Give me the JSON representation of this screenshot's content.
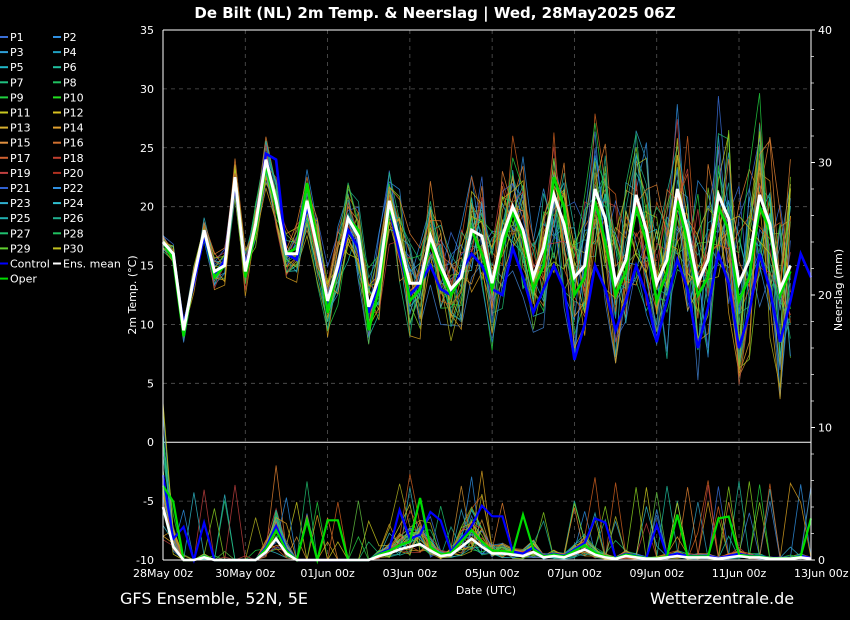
{
  "title": "De Bilt  (NL)  2m Temp. & Neerslag | Wed, 28May2025 06Z",
  "footer_left": "GFS Ensemble, 52N, 5E",
  "footer_right": "Wetterzentrale.de",
  "colors": {
    "background": "#000000",
    "grid": "#555555",
    "axis": "#ffffff",
    "control": "#0000ff",
    "mean": "#ffffff",
    "oper": "#00dd00"
  },
  "chart_data": {
    "type": "line",
    "title": "De Bilt  (NL)  2m Temp. & Neerslag | Wed, 28May2025 06Z",
    "xlabel": "Date (UTC)",
    "ylabel": "2m Temp. (°C)",
    "y2label": "Neerslag (mm)",
    "x_ticks": [
      "28May 00z",
      "30May 00z",
      "01Jun 00z",
      "03Jun 00z",
      "05Jun 00z",
      "07Jun 00z",
      "09Jun 00z",
      "11Jun 00z",
      "13Jun 00z"
    ],
    "xlim": [
      "28May 00z",
      "13Jun 00z"
    ],
    "ylim": [
      -10,
      35
    ],
    "y_ticks": [
      35,
      30,
      25,
      20,
      15,
      10,
      5,
      0,
      -5,
      -10
    ],
    "y2lim": [
      0,
      40
    ],
    "y2_ticks": [
      40,
      30,
      20,
      10,
      0
    ],
    "legend": [
      "P1",
      "P2",
      "P3",
      "P4",
      "P5",
      "P6",
      "P7",
      "P8",
      "P9",
      "P10",
      "P11",
      "P12",
      "P13",
      "P14",
      "P15",
      "P16",
      "P17",
      "P18",
      "P19",
      "P20",
      "P21",
      "P22",
      "P23",
      "P24",
      "P25",
      "P26",
      "P27",
      "P28",
      "P29",
      "P30",
      "Control",
      "Ens. mean",
      "Oper"
    ],
    "legend_placement": "left",
    "grid": true,
    "time_step_hours": 6,
    "series": [
      {
        "name": "Control",
        "temperature": [
          17,
          15.5,
          10,
          13.5,
          17.5,
          14,
          15.5,
          22,
          15,
          18,
          24.5,
          24,
          16,
          15.5,
          20,
          17,
          12,
          14.5,
          18,
          16.5,
          11,
          13.5,
          20,
          16,
          12.5,
          13.5,
          15,
          13,
          12.5,
          14.5,
          16,
          15,
          13,
          12.5,
          16.5,
          14,
          11,
          13,
          15,
          13,
          7,
          10,
          15,
          13,
          9.5,
          12,
          15,
          12.5,
          8.5,
          12,
          15.5,
          13,
          8,
          11.5,
          16,
          13.5,
          8,
          11,
          16,
          13,
          8.5,
          12,
          16,
          14
        ]
      },
      {
        "name": "Ens. mean",
        "temperature": [
          17,
          16,
          9.5,
          14,
          18,
          14.5,
          15,
          22.5,
          14.5,
          18.5,
          24,
          20.5,
          16,
          16,
          20.5,
          16.5,
          12,
          15,
          19,
          17.5,
          11.5,
          14,
          20.5,
          17,
          13.5,
          13.5,
          17.5,
          15,
          13,
          14,
          18,
          17.5,
          13.5,
          17.5,
          20,
          18,
          14,
          16.5,
          21,
          18.5,
          14,
          15,
          21.5,
          19,
          13.5,
          15.5,
          21,
          18,
          13.5,
          15.5,
          21.5,
          18,
          13.5,
          15.5,
          21,
          19,
          13.5,
          15.5,
          21,
          18.5,
          13,
          15
        ]
      },
      {
        "name": "Oper",
        "temperature": [
          17,
          15.5,
          9,
          14,
          18,
          14,
          15,
          22.5,
          14,
          18,
          23.5,
          20,
          16,
          16.5,
          22,
          17,
          11,
          15,
          19,
          18,
          9.5,
          13,
          20,
          17,
          12,
          13,
          17,
          14.5,
          12.5,
          14,
          18,
          16,
          13,
          16.5,
          19.5,
          17.5,
          13,
          15,
          22.5,
          20,
          12.5,
          14,
          20.5,
          17,
          12.5,
          14.5,
          20,
          17,
          12,
          14.5,
          20.5,
          17,
          12.5,
          14,
          20,
          18,
          12,
          14,
          20,
          18,
          12.5,
          14.5
        ]
      }
    ],
    "precipitation_mean_mm": [
      4,
      1,
      0,
      0,
      0.2,
      0,
      0,
      0,
      0,
      0,
      0.6,
      1.6,
      0.5,
      0,
      0,
      0,
      0,
      0,
      0,
      0,
      0,
      0.3,
      0.5,
      0.8,
      1,
      1.2,
      0.7,
      0.3,
      0.4,
      1,
      1.6,
      1,
      0.5,
      0.5,
      0.4,
      0.3,
      0.6,
      0.2,
      0.3,
      0.2,
      0.5,
      0.8,
      0.4,
      0.2,
      0.1,
      0.3,
      0.2,
      0.1,
      0.1,
      0.2,
      0.3,
      0.2,
      0.2,
      0.2,
      0.1,
      0.2,
      0.3,
      0.2,
      0.2,
      0.1,
      0.1,
      0.1,
      0.2,
      0.1
    ]
  }
}
